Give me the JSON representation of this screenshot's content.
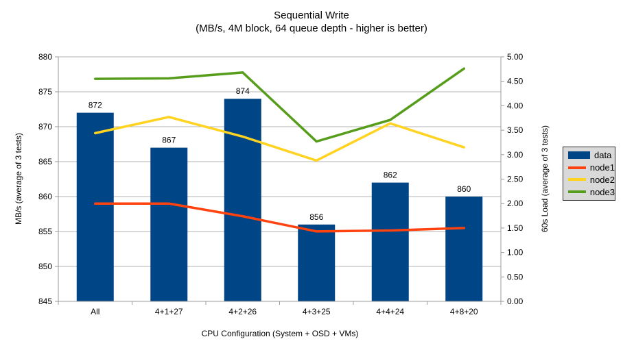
{
  "chart_data": {
    "type": "bar+line",
    "title": "Sequential Write",
    "subtitle": "(MB/s, 4M block, 64 queue depth - higher is better)",
    "categories": [
      "All",
      "4+1+27",
      "4+2+26",
      "4+3+25",
      "4+4+24",
      "4+8+20"
    ],
    "bar_series": {
      "name": "data",
      "axis": "left",
      "color": "#004586",
      "values": [
        872,
        867,
        874,
        856,
        862,
        860
      ]
    },
    "line_series": [
      {
        "name": "node1",
        "axis": "right",
        "color": "#FF420E",
        "values": [
          2.0,
          2.0,
          1.74,
          1.43,
          1.45,
          1.5
        ]
      },
      {
        "name": "node2",
        "axis": "right",
        "color": "#FFD320",
        "values": [
          3.44,
          3.77,
          3.37,
          2.88,
          3.64,
          3.15
        ]
      },
      {
        "name": "node3",
        "axis": "right",
        "color": "#579D1C",
        "values": [
          4.55,
          4.56,
          4.68,
          3.27,
          3.71,
          4.76
        ]
      }
    ],
    "left_axis": {
      "label": "MB/s (average of 3 tests)",
      "min": 845,
      "max": 880,
      "step": 5
    },
    "right_axis": {
      "label": "60s Load (average of 3 tests)",
      "min": 0,
      "max": 5,
      "step": 0.5,
      "decimals": 2
    },
    "x_axis": {
      "label": "CPU Configuration (System + OSD + VMs)"
    },
    "legend": {
      "position": "right",
      "items": [
        "data",
        "node1",
        "node2",
        "node3"
      ]
    },
    "style": {
      "grid_color": "#B3B3B3",
      "axis_color": "#999999",
      "text_color": "#000000",
      "legend_background": "#D9D9D9",
      "legend_border": "#262626",
      "background": "#FFFFFF"
    }
  }
}
